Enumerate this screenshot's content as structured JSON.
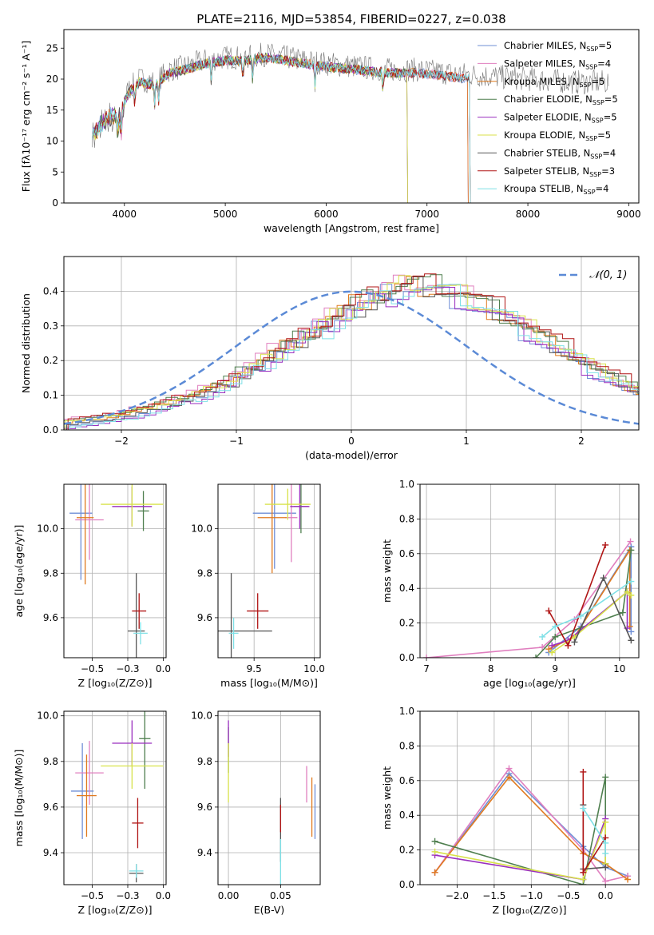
{
  "figure_title": "PLATE=2116, MJD=53854, FIBERID=0227, z=0.038",
  "series_colors": {
    "Chabrier MILES": "#6f8fd6",
    "Salpeter MILES": "#e07fbf",
    "Kroupa MILES": "#e07a1f",
    "Chabrier ELODIE": "#4f7f4f",
    "Salpeter ELODIE": "#9a2fbf",
    "Kroupa ELODIE": "#d8e24a",
    "Chabrier STELIB": "#555555",
    "Salpeter STELIB": "#b01515",
    "Kroupa STELIB": "#7fe0e6"
  },
  "chart_data": [
    {
      "id": "spectrum",
      "type": "line",
      "title": "PLATE=2116, MJD=53854, FIBERID=0227, z=0.038",
      "xlabel": "wavelength [Angstrom, rest frame]",
      "ylabel": "Flux [fλ10⁻¹⁷ erg cm⁻² s⁻¹ A⁻¹]",
      "xlim": [
        3400,
        9100
      ],
      "ylim": [
        0,
        28
      ],
      "xticks": [
        4000,
        5000,
        6000,
        7000,
        8000,
        9000
      ],
      "yticks": [
        0,
        5,
        10,
        15,
        20,
        25
      ],
      "legend_position": "top-right",
      "legend": [
        "Chabrier MILES, N_SSP=5",
        "Salpeter MILES, N_SSP=4",
        "Kroupa MILES, N_SSP=5",
        "Chabrier ELODIE, N_SSP=5",
        "Salpeter ELODIE, N_SSP=5",
        "Kroupa ELODIE, N_SSP=5",
        "Chabrier STELIB, N_SSP=4",
        "Salpeter STELIB, N_SSP=3",
        "Kroupa STELIB, N_SSP=4"
      ],
      "data_continuum": [
        [
          3680,
          11
        ],
        [
          3760,
          14
        ],
        [
          3880,
          15
        ],
        [
          3960,
          15.5
        ],
        [
          4050,
          18.5
        ],
        [
          4150,
          20
        ],
        [
          4300,
          19.5
        ],
        [
          4450,
          21.5
        ],
        [
          4600,
          22
        ],
        [
          4800,
          23
        ],
        [
          5000,
          23.5
        ],
        [
          5200,
          23.5
        ],
        [
          5400,
          24
        ],
        [
          5600,
          23.5
        ],
        [
          5800,
          23
        ],
        [
          6000,
          22.5
        ],
        [
          6300,
          22
        ],
        [
          6600,
          21.5
        ],
        [
          6900,
          21.5
        ],
        [
          7200,
          21
        ],
        [
          7600,
          20.5
        ],
        [
          8000,
          20
        ],
        [
          8500,
          19.5
        ],
        [
          8800,
          19.5
        ]
      ],
      "model_continuum": [
        [
          3680,
          11
        ],
        [
          3760,
          13.5
        ],
        [
          3880,
          15
        ],
        [
          3960,
          15
        ],
        [
          4050,
          18
        ],
        [
          4150,
          19.5
        ],
        [
          4300,
          19
        ],
        [
          4450,
          21
        ],
        [
          4600,
          21.5
        ],
        [
          4800,
          22.5
        ],
        [
          5000,
          23
        ],
        [
          5200,
          23
        ],
        [
          5400,
          23.5
        ],
        [
          5600,
          23
        ],
        [
          5800,
          22.5
        ],
        [
          6000,
          22
        ],
        [
          6300,
          21.5
        ],
        [
          6600,
          21
        ],
        [
          6900,
          21
        ],
        [
          7200,
          20.5
        ],
        [
          7400,
          20
        ]
      ],
      "model_end_wavelength": {
        "Chabrier MILES": 7400,
        "Salpeter MILES": 7400,
        "Kroupa MILES": 7400,
        "Chabrier ELODIE": 6800,
        "Salpeter ELODIE": 6800,
        "Kroupa ELODIE": 6800,
        "Chabrier STELIB": 7420,
        "Salpeter STELIB": 7420,
        "Kroupa STELIB": 7420
      }
    },
    {
      "id": "residuals",
      "type": "histogram",
      "xlabel": "(data-model)/error",
      "ylabel": "Normed distribution",
      "xlim": [
        -2.5,
        2.5
      ],
      "ylim": [
        0,
        0.5
      ],
      "xticks": [
        -2,
        -1,
        0,
        1,
        2
      ],
      "yticks": [
        0.0,
        0.1,
        0.2,
        0.3,
        0.4
      ],
      "legend": [
        "𝒩(0, 1)"
      ],
      "legend_position": "top-right",
      "bin_width": 0.1,
      "hist_start": -2.5,
      "base_values": [
        0.02,
        0.025,
        0.028,
        0.033,
        0.037,
        0.045,
        0.053,
        0.06,
        0.07,
        0.08,
        0.09,
        0.1,
        0.11,
        0.125,
        0.14,
        0.16,
        0.18,
        0.2,
        0.22,
        0.24,
        0.26,
        0.28,
        0.3,
        0.32,
        0.34,
        0.36,
        0.37,
        0.385,
        0.4,
        0.41,
        0.42,
        0.415,
        0.41,
        0.4,
        0.39,
        0.375,
        0.36,
        0.345,
        0.33,
        0.31,
        0.29,
        0.27,
        0.25,
        0.23,
        0.21,
        0.19,
        0.17,
        0.155,
        0.14,
        0.12,
        0.105,
        0.09,
        0.08,
        0.07,
        0.06,
        0.05,
        0.045,
        0.04,
        0.035,
        0.03
      ]
    },
    {
      "id": "age_vs_Z",
      "type": "errorbar",
      "xlabel": "Z [log₁₀(Z/Z⊙)]",
      "ylabel": "age  [log₁₀(age/yr)]",
      "xlim": [
        -0.7,
        0.02
      ],
      "ylim": [
        9.42,
        10.2
      ],
      "xticks": [
        -0.5,
        -0.25,
        0.0
      ],
      "yticks": [
        9.6,
        9.8,
        10.0
      ],
      "points": [
        {
          "series": "Chabrier MILES",
          "x": -0.58,
          "xerr": 0.08,
          "y": 10.07,
          "yerr": 0.3
        },
        {
          "series": "Salpeter MILES",
          "x": -0.52,
          "xerr": 0.1,
          "y": 10.04,
          "yerr": 0.18
        },
        {
          "series": "Kroupa MILES",
          "x": -0.55,
          "xerr": 0.06,
          "y": 10.05,
          "yerr": 0.3
        },
        {
          "series": "Chabrier ELODIE",
          "x": -0.14,
          "xerr": 0.04,
          "y": 10.08,
          "yerr": 0.09
        },
        {
          "series": "Salpeter ELODIE",
          "x": -0.22,
          "xerr": 0.14,
          "y": 10.1,
          "yerr": 0.09
        },
        {
          "series": "Kroupa ELODIE",
          "x": -0.22,
          "xerr": 0.22,
          "y": 10.11,
          "yerr": 0.1
        },
        {
          "series": "Chabrier STELIB",
          "x": -0.19,
          "xerr": 0.06,
          "y": 9.54,
          "yerr": 0.26
        },
        {
          "series": "Salpeter STELIB",
          "x": -0.17,
          "xerr": 0.05,
          "y": 9.63,
          "yerr": 0.08
        },
        {
          "series": "Kroupa STELIB",
          "x": -0.16,
          "xerr": 0.05,
          "y": 9.53,
          "yerr": 0.05
        }
      ]
    },
    {
      "id": "age_vs_mass",
      "type": "errorbar",
      "xlabel": "mass [log₁₀(M/M⊙)]",
      "ylabel": "",
      "xlim": [
        9.2,
        10.05
      ],
      "ylim": [
        9.42,
        10.2
      ],
      "xticks": [
        9.5,
        10.0
      ],
      "yticks": [
        9.6,
        9.8,
        10.0
      ],
      "points": [
        {
          "series": "Chabrier MILES",
          "x": 9.67,
          "xerr": 0.18,
          "y": 10.07,
          "yerr": 0.25
        },
        {
          "series": "Salpeter MILES",
          "x": 9.81,
          "xerr": 0.05,
          "y": 10.05,
          "yerr": 0.2
        },
        {
          "series": "Kroupa MILES",
          "x": 9.65,
          "xerr": 0.12,
          "y": 10.05,
          "yerr": 0.25
        },
        {
          "series": "Chabrier ELODIE",
          "x": 9.89,
          "xerr": 0.06,
          "y": 10.1,
          "yerr": 0.12
        },
        {
          "series": "Salpeter ELODIE",
          "x": 9.88,
          "xerr": 0.08,
          "y": 10.1,
          "yerr": 0.1
        },
        {
          "series": "Kroupa ELODIE",
          "x": 9.78,
          "xerr": 0.19,
          "y": 10.11,
          "yerr": 0.07
        },
        {
          "series": "Chabrier STELIB",
          "x": 9.31,
          "xerr": 0.34,
          "y": 9.54,
          "yerr": 0.26
        },
        {
          "series": "Salpeter STELIB",
          "x": 9.53,
          "xerr": 0.09,
          "y": 9.63,
          "yerr": 0.08
        },
        {
          "series": "Kroupa STELIB",
          "x": 9.33,
          "xerr": 0.04,
          "y": 9.53,
          "yerr": 0.07
        }
      ]
    },
    {
      "id": "weight_vs_age",
      "type": "line",
      "xlabel": "age  [log₁₀(age/yr)]",
      "ylabel": "mass weight",
      "xlim": [
        6.9,
        10.3
      ],
      "ylim": [
        0,
        1
      ],
      "xticks": [
        7,
        8,
        9,
        10
      ],
      "yticks": [
        0.0,
        0.2,
        0.4,
        0.6,
        0.8,
        1.0
      ],
      "series": [
        {
          "name": "Chabrier MILES",
          "x": [
            8.9,
            9.4,
            10.18,
            10.18
          ],
          "y": [
            0.03,
            0.18,
            0.64,
            0.15
          ]
        },
        {
          "name": "Salpeter MILES",
          "x": [
            7.0,
            8.8,
            9.3,
            10.17
          ],
          "y": [
            0.0,
            0.06,
            0.22,
            0.67
          ]
        },
        {
          "name": "Kroupa MILES",
          "x": [
            8.9,
            9.3,
            10.16,
            10.16
          ],
          "y": [
            0.05,
            0.12,
            0.62,
            0.18
          ]
        },
        {
          "name": "Chabrier ELODIE",
          "x": [
            8.7,
            9.0,
            10.05,
            10.18
          ],
          "y": [
            0.0,
            0.12,
            0.26,
            0.62
          ]
        },
        {
          "name": "Salpeter ELODIE",
          "x": [
            8.95,
            9.2,
            10.12,
            10.12
          ],
          "y": [
            0.07,
            0.1,
            0.38,
            0.17
          ]
        },
        {
          "name": "Kroupa ELODIE",
          "x": [
            8.95,
            9.3,
            10.12,
            10.18
          ],
          "y": [
            0.03,
            0.12,
            0.38,
            0.36
          ]
        },
        {
          "name": "Chabrier STELIB",
          "x": [
            9.3,
            9.75,
            10.18
          ],
          "y": [
            0.09,
            0.46,
            0.1
          ]
        },
        {
          "name": "Salpeter STELIB",
          "x": [
            8.9,
            9.2,
            9.78
          ],
          "y": [
            0.27,
            0.07,
            0.65
          ]
        },
        {
          "name": "Kroupa STELIB",
          "x": [
            8.8,
            9.0,
            9.4,
            10.18
          ],
          "y": [
            0.12,
            0.18,
            0.24,
            0.44
          ]
        }
      ]
    },
    {
      "id": "mass_vs_Z",
      "type": "errorbar",
      "xlabel": "Z [log₁₀(Z/Z⊙)]",
      "ylabel": "mass [log₁₀(M/M⊙)]",
      "xlim": [
        -0.7,
        0.02
      ],
      "ylim": [
        9.26,
        10.02
      ],
      "xticks": [
        -0.5,
        -0.25,
        0.0
      ],
      "yticks": [
        9.4,
        9.6,
        9.8,
        10.0
      ],
      "points": [
        {
          "series": "Chabrier MILES",
          "x": -0.57,
          "xerr": 0.08,
          "y": 9.67,
          "yerr": 0.21
        },
        {
          "series": "Salpeter MILES",
          "x": -0.52,
          "xerr": 0.1,
          "y": 9.75,
          "yerr": 0.14
        },
        {
          "series": "Kroupa MILES",
          "x": -0.54,
          "xerr": 0.07,
          "y": 9.65,
          "yerr": 0.18
        },
        {
          "series": "Chabrier ELODIE",
          "x": -0.13,
          "xerr": 0.04,
          "y": 9.9,
          "yerr": 0.22
        },
        {
          "series": "Salpeter ELODIE",
          "x": -0.22,
          "xerr": 0.14,
          "y": 9.88,
          "yerr": 0.1
        },
        {
          "series": "Kroupa ELODIE",
          "x": -0.22,
          "xerr": 0.22,
          "y": 9.78,
          "yerr": 0.1
        },
        {
          "series": "Chabrier STELIB",
          "x": -0.19,
          "xerr": 0.05,
          "y": 9.31,
          "yerr": 0.04
        },
        {
          "series": "Salpeter STELIB",
          "x": -0.18,
          "xerr": 0.04,
          "y": 9.53,
          "yerr": 0.11
        },
        {
          "series": "Kroupa STELIB",
          "x": -0.19,
          "xerr": 0.05,
          "y": 9.32,
          "yerr": 0.03
        }
      ]
    },
    {
      "id": "mass_vs_EBV",
      "type": "errorbar",
      "xlabel": "E(B-V)",
      "ylabel": "",
      "xlim": [
        -0.01,
        0.088
      ],
      "ylim": [
        9.26,
        10.02
      ],
      "xticks": [
        0.0,
        0.05
      ],
      "yticks": [
        9.4,
        9.6,
        9.8,
        10.0
      ],
      "points": [
        {
          "series": "Chabrier MILES",
          "x": 0.083,
          "xerr": 0,
          "y": 9.58,
          "yerr": 0.12
        },
        {
          "series": "Salpeter MILES",
          "x": 0.075,
          "xerr": 0,
          "y": 9.7,
          "yerr": 0.08
        },
        {
          "series": "Kroupa MILES",
          "x": 0.08,
          "xerr": 0,
          "y": 9.6,
          "yerr": 0.13
        },
        {
          "series": "Chabrier ELODIE",
          "x": 0.0,
          "xerr": 0,
          "y": 9.85,
          "yerr": 0.1
        },
        {
          "series": "Salpeter ELODIE",
          "x": 0.0,
          "xerr": 0,
          "y": 9.9,
          "yerr": 0.08
        },
        {
          "series": "Kroupa ELODIE",
          "x": 0.0,
          "xerr": 0,
          "y": 9.75,
          "yerr": 0.13
        },
        {
          "series": "Chabrier STELIB",
          "x": 0.05,
          "xerr": 0,
          "y": 9.5,
          "yerr": 0.14
        },
        {
          "series": "Salpeter STELIB",
          "x": 0.05,
          "xerr": 0,
          "y": 9.55,
          "yerr": 0.06
        },
        {
          "series": "Kroupa STELIB",
          "x": 0.05,
          "xerr": 0,
          "y": 9.36,
          "yerr": 0.1
        }
      ]
    },
    {
      "id": "weight_vs_Z",
      "type": "line",
      "xlabel": "Z [log₁₀(Z/Z⊙)]",
      "ylabel": "mass weight",
      "xlim": [
        -2.5,
        0.45
      ],
      "ylim": [
        0,
        1
      ],
      "xticks": [
        -2.0,
        -1.5,
        -1.0,
        -0.5,
        0.0
      ],
      "yticks": [
        0.0,
        0.2,
        0.4,
        0.6,
        0.8,
        1.0
      ],
      "series": [
        {
          "name": "Chabrier MILES",
          "x": [
            -2.3,
            -1.3,
            -0.3,
            0.0,
            0.3
          ],
          "y": [
            0.07,
            0.64,
            0.22,
            0.1,
            0.05
          ]
        },
        {
          "name": "Salpeter MILES",
          "x": [
            -2.3,
            -1.3,
            -0.3,
            0.0,
            0.3
          ],
          "y": [
            0.07,
            0.67,
            0.2,
            0.02,
            0.05
          ]
        },
        {
          "name": "Kroupa MILES",
          "x": [
            -2.3,
            -1.3,
            -0.3,
            0.0,
            0.3
          ],
          "y": [
            0.07,
            0.62,
            0.18,
            0.12,
            0.03
          ]
        },
        {
          "name": "Chabrier ELODIE",
          "x": [
            -2.3,
            -0.3,
            0.0,
            0.0
          ],
          "y": [
            0.25,
            0.0,
            0.62,
            0.12
          ]
        },
        {
          "name": "Salpeter ELODIE",
          "x": [
            -2.3,
            -0.3,
            0.0,
            0.0
          ],
          "y": [
            0.17,
            0.03,
            0.38,
            0.1
          ]
        },
        {
          "name": "Kroupa ELODIE",
          "x": [
            -2.3,
            -0.3,
            0.0,
            0.0
          ],
          "y": [
            0.19,
            0.03,
            0.36,
            0.12
          ]
        },
        {
          "name": "Chabrier STELIB",
          "x": [
            -0.3,
            -0.3,
            0.0
          ],
          "y": [
            0.46,
            0.09,
            0.1
          ]
        },
        {
          "name": "Salpeter STELIB",
          "x": [
            -0.3,
            -0.3,
            0.0
          ],
          "y": [
            0.65,
            0.07,
            0.27
          ]
        },
        {
          "name": "Kroupa STELIB",
          "x": [
            -0.3,
            0.0,
            0.0
          ],
          "y": [
            0.44,
            0.24,
            0.18
          ]
        }
      ]
    }
  ]
}
